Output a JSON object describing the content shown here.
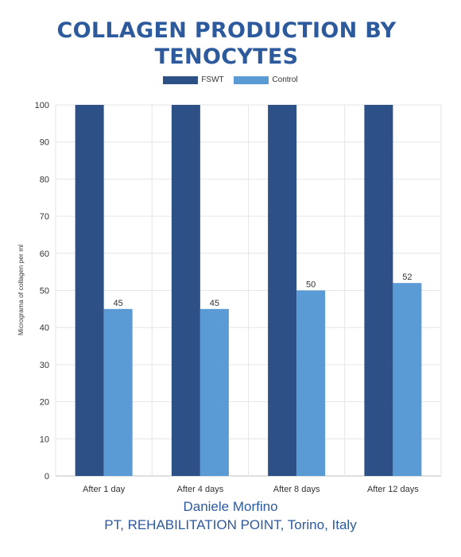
{
  "chart_data": {
    "type": "bar",
    "title": [
      "COLLAGEN PRODUCTION BY",
      "TENOCYTES"
    ],
    "categories": [
      "After 1 day",
      "After 4 days",
      "After 8 days",
      "After 12 days"
    ],
    "series": [
      {
        "name": "FSWT",
        "values": [
          100,
          100,
          100,
          100
        ],
        "color": "#2d5087",
        "show_labels": false
      },
      {
        "name": "Control",
        "values": [
          45,
          45,
          50,
          52
        ],
        "color": "#5b9bd5",
        "show_labels": true
      }
    ],
    "xlabel": "",
    "ylabel": "Micrograma of collagen per ml",
    "ylim": [
      0,
      100
    ],
    "yticks": [
      0,
      10,
      20,
      30,
      40,
      50,
      60,
      70,
      80,
      90,
      100
    ],
    "grid": true,
    "legend_position": "top-center"
  },
  "footer": {
    "line1": "Daniele Morfino",
    "line2": "PT, REHABILITATION POINT, Torino, Italy"
  }
}
